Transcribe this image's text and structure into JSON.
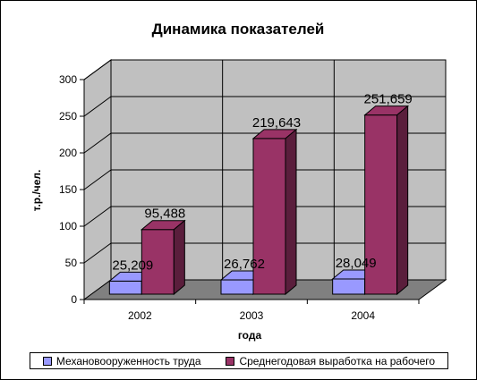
{
  "chart_data": {
    "type": "bar",
    "title": "Динамика показателей",
    "xlabel": "года",
    "ylabel": "т.р./чел.",
    "categories": [
      "2002",
      "2003",
      "2004"
    ],
    "yticks": [
      "0",
      "50",
      "100",
      "150",
      "200",
      "250",
      "300"
    ],
    "ylim": [
      0,
      300
    ],
    "style": "3d-clustered-column",
    "grid": true,
    "legend_position": "bottom",
    "colors": {
      "wall": "#c0c0c0",
      "floor": "#808080",
      "grid": "#000000"
    },
    "series": [
      {
        "name": "Механовооруженность труда",
        "values": [
          25.209,
          26.762,
          28.049
        ],
        "labels": [
          "25,209",
          "26,762",
          "28,049"
        ],
        "color": "#9999ff",
        "color_dark": "#5b5bbf"
      },
      {
        "name": "Среднегодовая выработка на рабочего",
        "values": [
          95.488,
          219.643,
          251.659
        ],
        "labels": [
          "95,488",
          "219,643",
          "251,659"
        ],
        "color": "#993366",
        "color_dark": "#5a1e3c"
      }
    ]
  }
}
